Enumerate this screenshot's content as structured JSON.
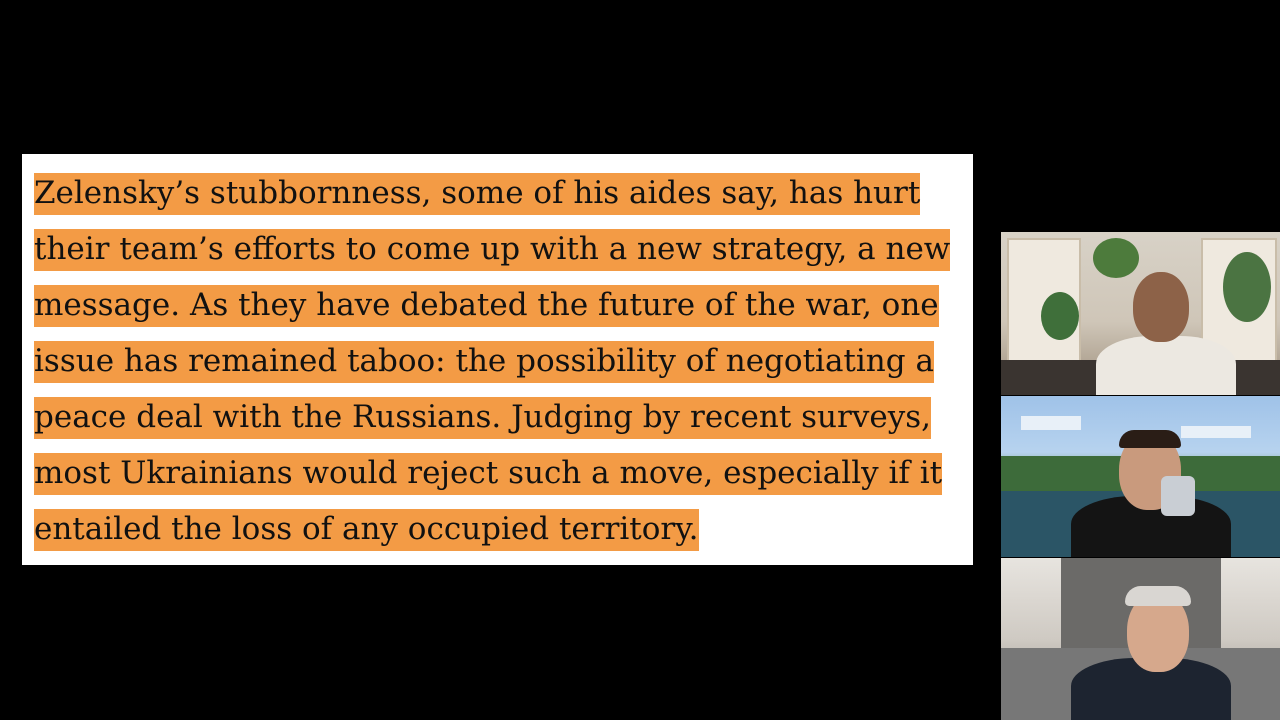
{
  "quote": {
    "lines": [
      "Zelensky’s stubbornness, some of his aides say, has hurt",
      "their team’s efforts to come up with a new strategy, a new",
      "message. As they have debated the future of the war, one",
      "issue has remained taboo: the possibility of negotiating a",
      "peace deal with the Russians. Judging by recent surveys,",
      "most Ukrainians would reject such a move, especially if it",
      "entailed the loss of any occupied territory."
    ],
    "highlight_color": "#f39b45"
  },
  "participants": [
    {
      "tile": "video-tile-1",
      "scene": "living room with bookshelves and plants"
    },
    {
      "tile": "video-tile-2",
      "scene": "blocky game landscape background"
    },
    {
      "tile": "video-tile-3",
      "scene": "room with marble wall"
    }
  ]
}
